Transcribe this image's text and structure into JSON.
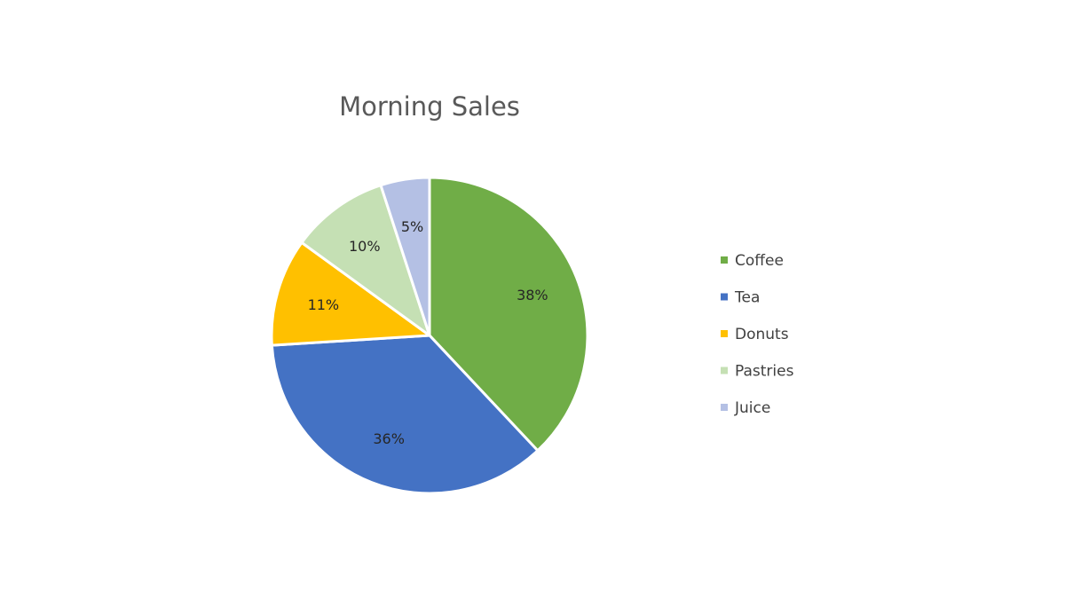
{
  "chart_data": {
    "type": "pie",
    "title": "Morning Sales",
    "categories": [
      "Coffee",
      "Tea",
      "Donuts",
      "Pastries",
      "Juice"
    ],
    "values": [
      38,
      36,
      11,
      10,
      5
    ],
    "labels": [
      "38%",
      "36%",
      "11%",
      "10%",
      "5%"
    ],
    "colors": [
      "#70ad47",
      "#4472c4",
      "#ffc000",
      "#c5e0b4",
      "#b4c0e4"
    ],
    "start_angle_deg": 0,
    "direction": "clockwise",
    "legend": {
      "position": "right",
      "entries": [
        "Coffee",
        "Tea",
        "Donuts",
        "Pastries",
        "Juice"
      ]
    }
  }
}
